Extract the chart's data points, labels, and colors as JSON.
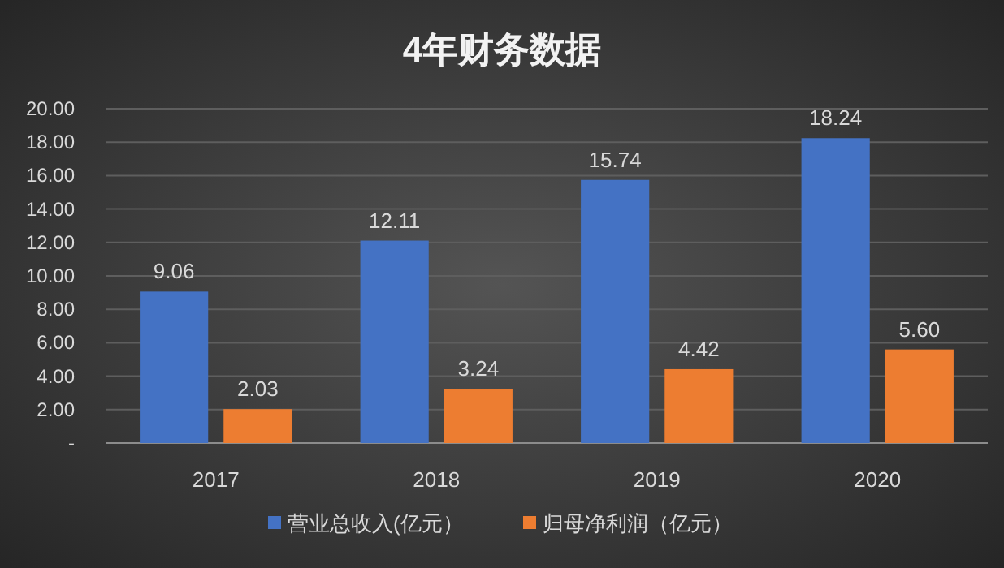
{
  "chart_data": {
    "type": "bar",
    "title": "4年财务数据",
    "categories": [
      "2017",
      "2018",
      "2019",
      "2020"
    ],
    "series": [
      {
        "name": "营业总收入(亿元）",
        "color": "#4472c4",
        "values": [
          9.06,
          12.11,
          15.74,
          18.24
        ],
        "value_labels": [
          "9.06",
          "12.11",
          "15.74",
          "18.24"
        ]
      },
      {
        "name": "归母净利润（亿元）",
        "color": "#ed7d31",
        "values": [
          2.03,
          3.24,
          4.42,
          5.6
        ],
        "value_labels": [
          "2.03",
          "3.24",
          "4.42",
          "5.60"
        ]
      }
    ],
    "ylim": [
      0,
      20
    ],
    "yticks": [
      {
        "value": 0,
        "label": "-"
      },
      {
        "value": 2,
        "label": "2.00"
      },
      {
        "value": 4,
        "label": "4.00"
      },
      {
        "value": 6,
        "label": "6.00"
      },
      {
        "value": 8,
        "label": "8.00"
      },
      {
        "value": 10,
        "label": "10.00"
      },
      {
        "value": 12,
        "label": "12.00"
      },
      {
        "value": 14,
        "label": "14.00"
      },
      {
        "value": 16,
        "label": "16.00"
      },
      {
        "value": 18,
        "label": "18.00"
      },
      {
        "value": 20,
        "label": "20.00"
      }
    ],
    "grid": "y",
    "legend": "bottom"
  }
}
